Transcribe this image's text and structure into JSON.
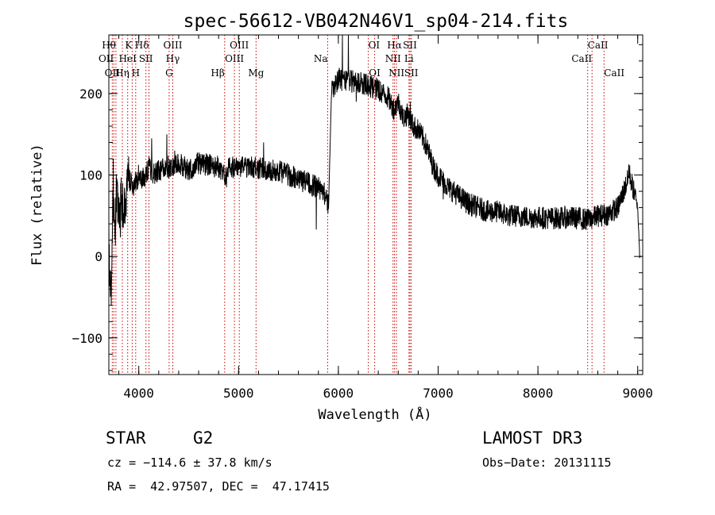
{
  "chart_data": {
    "type": "line",
    "title": "spec-56612-VB042N46V1_sp04-214.fits",
    "xlabel": "Wavelength (Å)",
    "ylabel": "Flux (relative)",
    "xlim": [
      3700,
      9050
    ],
    "ylim": [
      -145,
      272
    ],
    "x_ticks": [
      4000,
      5000,
      6000,
      7000,
      8000,
      9000
    ],
    "y_ticks": [
      -100,
      0,
      100,
      200
    ],
    "x_tick_labels": [
      "4000",
      "5000",
      "6000",
      "7000",
      "8000",
      "9000"
    ],
    "y_tick_labels": [
      "−100",
      "0",
      "100",
      "200"
    ],
    "series": [
      {
        "name": "spectrum",
        "anchors": [
          [
            3700,
            20
          ],
          [
            3720,
            -40
          ],
          [
            3740,
            60
          ],
          [
            3760,
            30
          ],
          [
            3780,
            80
          ],
          [
            3800,
            40
          ],
          [
            3830,
            70
          ],
          [
            3860,
            60
          ],
          [
            3900,
            95
          ],
          [
            3950,
            85
          ],
          [
            4000,
            100
          ],
          [
            4050,
            95
          ],
          [
            4100,
            110
          ],
          [
            4150,
            100
          ],
          [
            4200,
            105
          ],
          [
            4300,
            110
          ],
          [
            4400,
            115
          ],
          [
            4500,
            105
          ],
          [
            4600,
            115
          ],
          [
            4700,
            112
          ],
          [
            4800,
            110
          ],
          [
            4860,
            100
          ],
          [
            4900,
            110
          ],
          [
            5000,
            110
          ],
          [
            5100,
            110
          ],
          [
            5200,
            108
          ],
          [
            5300,
            106
          ],
          [
            5400,
            105
          ],
          [
            5500,
            100
          ],
          [
            5600,
            95
          ],
          [
            5700,
            90
          ],
          [
            5800,
            85
          ],
          [
            5850,
            80
          ],
          [
            5900,
            62
          ],
          [
            5910,
            100
          ],
          [
            5930,
            200
          ],
          [
            6000,
            218
          ],
          [
            6100,
            215
          ],
          [
            6200,
            215
          ],
          [
            6300,
            210
          ],
          [
            6400,
            205
          ],
          [
            6500,
            195
          ],
          [
            6560,
            180
          ],
          [
            6600,
            190
          ],
          [
            6650,
            170
          ],
          [
            6700,
            175
          ],
          [
            6750,
            160
          ],
          [
            6800,
            155
          ],
          [
            6850,
            145
          ],
          [
            6900,
            130
          ],
          [
            6950,
            110
          ],
          [
            7000,
            100
          ],
          [
            7100,
            85
          ],
          [
            7200,
            75
          ],
          [
            7300,
            65
          ],
          [
            7400,
            60
          ],
          [
            7500,
            55
          ],
          [
            7600,
            55
          ],
          [
            7700,
            50
          ],
          [
            7800,
            50
          ],
          [
            7900,
            48
          ],
          [
            8000,
            48
          ],
          [
            8100,
            47
          ],
          [
            8200,
            47
          ],
          [
            8300,
            48
          ],
          [
            8400,
            47
          ],
          [
            8500,
            45
          ],
          [
            8600,
            50
          ],
          [
            8700,
            52
          ],
          [
            8800,
            60
          ],
          [
            8860,
            80
          ],
          [
            8920,
            100
          ],
          [
            8960,
            80
          ],
          [
            9000,
            60
          ],
          [
            9020,
            0
          ]
        ],
        "noise_amplitude": 14,
        "noise_seed": 56612,
        "spikes": [
          {
            "x": 3725,
            "y": -60
          },
          {
            "x": 3745,
            "y": 120
          },
          {
            "x": 4130,
            "y": 145
          },
          {
            "x": 4280,
            "y": 150
          },
          {
            "x": 4360,
            "y": 130
          },
          {
            "x": 4880,
            "y": 85
          },
          {
            "x": 5250,
            "y": 140
          },
          {
            "x": 5780,
            "y": 33
          },
          {
            "x": 6040,
            "y": 272
          },
          {
            "x": 6100,
            "y": 272
          },
          {
            "x": 6180,
            "y": 190
          },
          {
            "x": 6720,
            "y": 190
          },
          {
            "x": 7050,
            "y": 70
          },
          {
            "x": 8910,
            "y": 113
          }
        ]
      }
    ],
    "line_color": "#000000",
    "marker_color": "#cc0000",
    "markers": [
      {
        "x": 3734,
        "labels": [
          "OII"
        ]
      },
      {
        "x": 3750,
        "labels": [
          "OII"
        ]
      },
      {
        "x": 3771,
        "labels": [
          "Hθ"
        ]
      },
      {
        "x": 3835,
        "labels": [
          "Hη"
        ]
      },
      {
        "x": 3889,
        "labels": [
          "HeI"
        ]
      },
      {
        "x": 3934,
        "labels": [
          "K"
        ]
      },
      {
        "x": 3969,
        "labels": [
          "H"
        ]
      },
      {
        "x": 4072,
        "labels": [
          "SII"
        ]
      },
      {
        "x": 4102,
        "labels": [
          "Hδ"
        ]
      },
      {
        "x": 4304,
        "labels": [
          "G"
        ]
      },
      {
        "x": 4341,
        "labels": [
          "Hγ",
          "OIII"
        ]
      },
      {
        "x": 4861,
        "labels": [
          "Hβ"
        ]
      },
      {
        "x": 4959,
        "labels": [
          "OIII"
        ]
      },
      {
        "x": 5007,
        "labels": [
          "OIII"
        ]
      },
      {
        "x": 5175,
        "labels": [
          "Mg"
        ]
      },
      {
        "x": 5893,
        "labels": [
          "Na"
        ]
      },
      {
        "x": 6300,
        "labels": [
          "OI"
        ]
      },
      {
        "x": 6364,
        "labels": [
          "OI"
        ]
      },
      {
        "x": 6548,
        "labels": [
          "NII"
        ]
      },
      {
        "x": 6563,
        "labels": [
          "Hα"
        ]
      },
      {
        "x": 6583,
        "labels": [
          "NII"
        ]
      },
      {
        "x": 6708,
        "labels": [
          "Li"
        ]
      },
      {
        "x": 6717,
        "labels": [
          "SII",
          "SII"
        ]
      },
      {
        "x": 6731,
        "labels": [
          "SII"
        ]
      },
      {
        "x": 8498,
        "labels": [
          "CaII"
        ]
      },
      {
        "x": 8542,
        "labels": [
          "CaII"
        ]
      },
      {
        "x": 8662,
        "labels": [
          "CaII"
        ]
      }
    ],
    "marker_label_items": [
      {
        "text": "Hθ",
        "x": 3771,
        "row": 0,
        "anchor": "end"
      },
      {
        "text": "K",
        "x": 3934,
        "row": 0,
        "anchor": "end"
      },
      {
        "text": "Hδ",
        "x": 4102,
        "row": 0,
        "anchor": "end"
      },
      {
        "text": "OIII",
        "x": 4341,
        "row": 0,
        "anchor": "middle"
      },
      {
        "text": "OIII",
        "x": 5007,
        "row": 0,
        "anchor": "middle"
      },
      {
        "text": "OI",
        "x": 6300,
        "row": 0,
        "anchor": "start"
      },
      {
        "text": "Hα",
        "x": 6563,
        "row": 0,
        "anchor": "middle"
      },
      {
        "text": "SII",
        "x": 6717,
        "row": 0,
        "anchor": "middle"
      },
      {
        "text": "CaII",
        "x": 8498,
        "row": 0,
        "anchor": "start"
      },
      {
        "text": "OII",
        "x": 3750,
        "row": 1,
        "anchor": "end"
      },
      {
        "text": "HeI",
        "x": 3889,
        "row": 1,
        "anchor": "middle"
      },
      {
        "text": "SII",
        "x": 4072,
        "row": 1,
        "anchor": "middle"
      },
      {
        "text": "Hγ",
        "x": 4341,
        "row": 1,
        "anchor": "middle"
      },
      {
        "text": "OIII",
        "x": 4959,
        "row": 1,
        "anchor": "middle"
      },
      {
        "text": "Na",
        "x": 5893,
        "row": 1,
        "anchor": "end"
      },
      {
        "text": "NII",
        "x": 6548,
        "row": 1,
        "anchor": "middle"
      },
      {
        "text": "Li",
        "x": 6708,
        "row": 1,
        "anchor": "middle"
      },
      {
        "text": "CaII",
        "x": 8542,
        "row": 1,
        "anchor": "end"
      },
      {
        "text": "OII",
        "x": 3734,
        "row": 2,
        "anchor": "middle"
      },
      {
        "text": "Hη",
        "x": 3835,
        "row": 2,
        "anchor": "middle"
      },
      {
        "text": "H",
        "x": 3969,
        "row": 2,
        "anchor": "middle"
      },
      {
        "text": "G",
        "x": 4304,
        "row": 2,
        "anchor": "middle"
      },
      {
        "text": "Hβ",
        "x": 4861,
        "row": 2,
        "anchor": "end"
      },
      {
        "text": "Mg",
        "x": 5175,
        "row": 2,
        "anchor": "middle"
      },
      {
        "text": "OI",
        "x": 6364,
        "row": 2,
        "anchor": "middle"
      },
      {
        "text": "NII",
        "x": 6583,
        "row": 2,
        "anchor": "middle"
      },
      {
        "text": "SII",
        "x": 6731,
        "row": 2,
        "anchor": "middle"
      },
      {
        "text": "CaII",
        "x": 8662,
        "row": 2,
        "anchor": "start"
      }
    ]
  },
  "info": {
    "object_class": "STAR",
    "subclass": "G2",
    "survey": "LAMOST DR3",
    "redshift": "cz = −114.6 ± 37.8 km/s",
    "obs_date": "Obs−Date: 20131115",
    "coords": "RA =  42.97507, DEC =  47.17415"
  }
}
